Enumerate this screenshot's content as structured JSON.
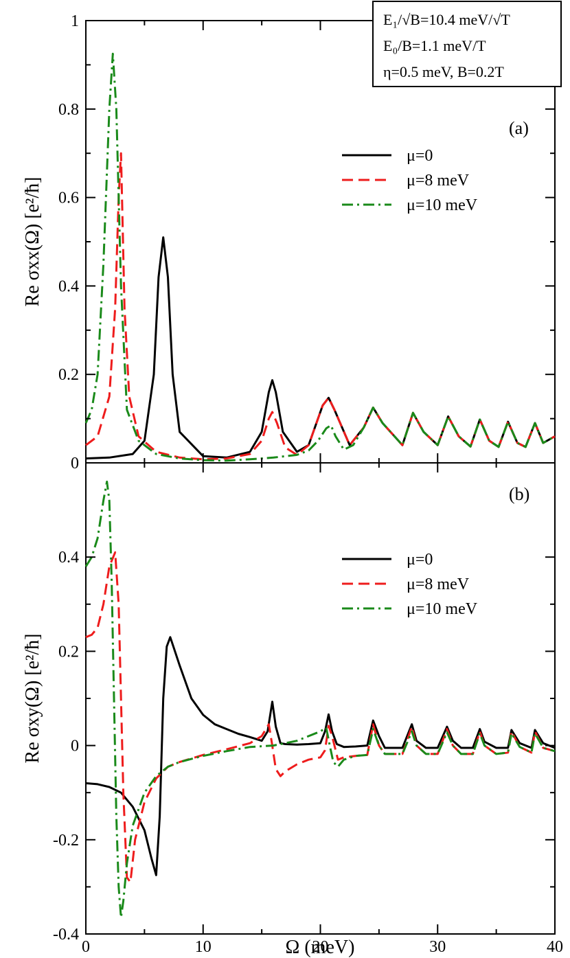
{
  "info_box": {
    "line1": "E₁/√B=10.4 meV/√T",
    "line2": "E₀/B=1.1 meV/T",
    "line3": "η=0.5 meV, B=0.2T"
  },
  "xlabel": "Ω (meV)",
  "colors": {
    "black": "#000000",
    "red": "#ee1c1c",
    "green": "#1a8a1a"
  },
  "chart_data": [
    {
      "type": "line",
      "panel": "(a)",
      "ylabel": "Re σxx(Ω) [e²/ħ]",
      "xlim": [
        0,
        40
      ],
      "ylim": [
        0,
        1.0
      ],
      "xticks": [
        0,
        10,
        20,
        30,
        40
      ],
      "xtick_labels": [
        "0",
        "10",
        "20",
        "30",
        "40"
      ],
      "yticks": [
        0,
        0.2,
        0.4,
        0.6,
        0.8,
        1.0
      ],
      "ytick_labels": [
        "0",
        "0.2",
        "0.4",
        "0.6",
        "0.8",
        "1"
      ],
      "legend": "upper-right",
      "series": [
        {
          "name": "μ=0",
          "style": "solid",
          "color": "#000000",
          "x": [
            0,
            2,
            4,
            5,
            5.8,
            6.2,
            6.6,
            7.0,
            7.4,
            8,
            10,
            12,
            14,
            15,
            15.6,
            15.9,
            16.2,
            16.8,
            18,
            19,
            20.2,
            20.7,
            21.2,
            22.5,
            23.7,
            24.5,
            25.3,
            27,
            27.9,
            28.8,
            30,
            30.9,
            31.8,
            32.8,
            33.6,
            34.4,
            35.2,
            36,
            36.8,
            37.5,
            38.3,
            39,
            40
          ],
          "y": [
            0.01,
            0.012,
            0.02,
            0.05,
            0.2,
            0.42,
            0.51,
            0.42,
            0.2,
            0.07,
            0.015,
            0.012,
            0.025,
            0.07,
            0.16,
            0.187,
            0.16,
            0.07,
            0.025,
            0.04,
            0.13,
            0.147,
            0.12,
            0.04,
            0.08,
            0.125,
            0.09,
            0.04,
            0.113,
            0.07,
            0.04,
            0.105,
            0.06,
            0.037,
            0.098,
            0.05,
            0.036,
            0.093,
            0.045,
            0.036,
            0.09,
            0.045,
            0.06
          ]
        },
        {
          "name": "μ=8 meV",
          "style": "dashed",
          "color": "#ee1c1c",
          "x": [
            0,
            1,
            2,
            2.5,
            2.8,
            3.0,
            3.3,
            3.7,
            4.5,
            6,
            8,
            10,
            12,
            14,
            15,
            15.6,
            15.9,
            16.3,
            17,
            18,
            19,
            20.2,
            20.7,
            21.2,
            22.5,
            23.7,
            24.5,
            25.3,
            27,
            27.9,
            28.8,
            30,
            30.9,
            31.8,
            32.8,
            33.6,
            34.4,
            35.2,
            36,
            36.8,
            37.5,
            38.3,
            39,
            40
          ],
          "y": [
            0.04,
            0.06,
            0.15,
            0.35,
            0.6,
            0.7,
            0.35,
            0.15,
            0.06,
            0.025,
            0.012,
            0.008,
            0.01,
            0.02,
            0.05,
            0.1,
            0.115,
            0.09,
            0.035,
            0.018,
            0.04,
            0.13,
            0.147,
            0.12,
            0.04,
            0.08,
            0.125,
            0.09,
            0.04,
            0.113,
            0.07,
            0.04,
            0.105,
            0.06,
            0.037,
            0.098,
            0.05,
            0.036,
            0.093,
            0.045,
            0.036,
            0.09,
            0.045,
            0.06
          ]
        },
        {
          "name": "μ=10 meV",
          "style": "dashdot",
          "color": "#1a8a1a",
          "x": [
            0,
            0.5,
            1,
            1.5,
            2,
            2.3,
            2.6,
            3,
            3.5,
            4.5,
            6,
            8,
            10,
            12,
            14,
            16,
            18,
            19,
            19.8,
            20.5,
            20.9,
            21.3,
            22,
            22.8,
            23.7,
            24.5,
            25.3,
            27,
            27.9,
            28.8,
            30,
            30.9,
            31.8,
            32.8,
            33.6,
            34.4,
            35.2,
            36,
            36.8,
            37.5,
            38.3,
            39,
            40
          ],
          "y": [
            0.09,
            0.12,
            0.2,
            0.45,
            0.8,
            0.925,
            0.8,
            0.4,
            0.12,
            0.05,
            0.02,
            0.01,
            0.006,
            0.005,
            0.008,
            0.012,
            0.018,
            0.028,
            0.05,
            0.078,
            0.085,
            0.06,
            0.03,
            0.04,
            0.08,
            0.125,
            0.09,
            0.04,
            0.113,
            0.07,
            0.04,
            0.105,
            0.06,
            0.037,
            0.098,
            0.05,
            0.036,
            0.093,
            0.045,
            0.036,
            0.09,
            0.045,
            0.06
          ]
        }
      ]
    },
    {
      "type": "line",
      "panel": "(b)",
      "ylabel": "Re σxy(Ω) [e²/ħ]",
      "xlim": [
        0,
        40
      ],
      "ylim": [
        -0.4,
        0.6
      ],
      "xticks": [
        0,
        10,
        20,
        30,
        40
      ],
      "xtick_labels": [
        "0",
        "10",
        "20",
        "30",
        "40"
      ],
      "yticks": [
        -0.4,
        -0.2,
        0,
        0.2,
        0.4
      ],
      "ytick_labels": [
        "-0.4",
        "-0.2",
        "0",
        "0.2",
        "0.4"
      ],
      "legend": "upper-right",
      "series": [
        {
          "name": "μ=0",
          "style": "solid",
          "color": "#000000",
          "x": [
            0,
            1,
            2,
            3,
            4,
            5,
            5.6,
            6.0,
            6.3,
            6.6,
            6.9,
            7.2,
            8,
            9,
            10,
            11,
            12,
            13,
            14,
            15,
            15.5,
            15.9,
            16.2,
            16.6,
            17,
            18,
            19,
            20,
            20.4,
            20.7,
            21,
            21.4,
            22,
            23,
            24,
            24.5,
            25,
            25.5,
            27,
            27.8,
            28.2,
            29,
            30,
            30.8,
            31.3,
            32,
            33,
            33.6,
            34,
            35,
            36,
            36.3,
            37,
            38,
            38.3,
            39,
            40
          ],
          "y": [
            -0.08,
            -0.082,
            -0.088,
            -0.1,
            -0.13,
            -0.18,
            -0.24,
            -0.275,
            -0.15,
            0.1,
            0.21,
            0.23,
            0.17,
            0.1,
            0.065,
            0.045,
            0.035,
            0.025,
            0.018,
            0.01,
            0.03,
            0.093,
            0.04,
            0.005,
            0.003,
            0.002,
            0.003,
            0.005,
            0.03,
            0.066,
            0.03,
            0.003,
            -0.003,
            -0.002,
            0.0,
            0.053,
            0.02,
            -0.005,
            -0.005,
            0.045,
            0.01,
            -0.005,
            -0.005,
            0.04,
            0.01,
            -0.005,
            -0.005,
            0.035,
            0.008,
            -0.005,
            -0.005,
            0.033,
            0.005,
            -0.005,
            0.033,
            0.005,
            -0.005
          ]
        },
        {
          "name": "μ=8 meV",
          "style": "dashed",
          "color": "#ee1c1c",
          "x": [
            0,
            0.5,
            1,
            1.5,
            2,
            2.5,
            2.8,
            3.2,
            3.5,
            3.8,
            4.2,
            5,
            6,
            7,
            8,
            10,
            12,
            14,
            15,
            15.6,
            15.9,
            16.2,
            16.6,
            17,
            18,
            19,
            20,
            20.4,
            20.7,
            21,
            21.5,
            22,
            23,
            24,
            24.5,
            25,
            25.5,
            27,
            27.8,
            28.2,
            29,
            30,
            30.8,
            31.3,
            32,
            33,
            33.6,
            34,
            35,
            36,
            36.3,
            37,
            38,
            38.3,
            39,
            40
          ],
          "y": [
            0.23,
            0.235,
            0.25,
            0.3,
            0.38,
            0.41,
            0.3,
            -0.1,
            -0.28,
            -0.29,
            -0.2,
            -0.12,
            -0.07,
            -0.045,
            -0.035,
            -0.02,
            -0.008,
            0.005,
            0.02,
            0.045,
            0.0,
            -0.05,
            -0.065,
            -0.055,
            -0.04,
            -0.03,
            -0.025,
            -0.01,
            0.042,
            0.02,
            -0.03,
            -0.025,
            -0.022,
            -0.02,
            0.045,
            0.0,
            -0.018,
            -0.018,
            0.04,
            0.0,
            -0.018,
            -0.018,
            0.035,
            0.0,
            -0.018,
            -0.018,
            0.03,
            0.0,
            -0.018,
            -0.015,
            0.03,
            -0.003,
            -0.015,
            0.03,
            -0.005,
            -0.012
          ]
        },
        {
          "name": "μ=10 meV",
          "style": "dashdot",
          "color": "#1a8a1a",
          "x": [
            0,
            0.5,
            1,
            1.5,
            1.8,
            2.0,
            2.2,
            2.4,
            2.6,
            2.8,
            3.0,
            3.2,
            3.5,
            4,
            5,
            6,
            7,
            8,
            10,
            12,
            14,
            16,
            18,
            19,
            20,
            20.5,
            20.8,
            21.1,
            21.5,
            22,
            23,
            24,
            24.5,
            25,
            25.5,
            27,
            27.8,
            28.2,
            29,
            30,
            30.8,
            31.3,
            32,
            33,
            33.6,
            34,
            35,
            36,
            36.3,
            37,
            38,
            38.3,
            39,
            40
          ],
          "y": [
            0.38,
            0.4,
            0.44,
            0.52,
            0.56,
            0.52,
            0.35,
            0.1,
            -0.15,
            -0.3,
            -0.365,
            -0.33,
            -0.25,
            -0.17,
            -0.1,
            -0.065,
            -0.045,
            -0.035,
            -0.022,
            -0.012,
            -0.003,
            0.0,
            0.01,
            0.02,
            0.03,
            0.038,
            0.0,
            -0.035,
            -0.045,
            -0.03,
            -0.022,
            -0.02,
            0.035,
            0.0,
            -0.018,
            -0.018,
            0.03,
            0.0,
            -0.018,
            -0.018,
            0.028,
            0.0,
            -0.018,
            -0.018,
            0.026,
            0.0,
            -0.018,
            -0.015,
            0.026,
            -0.003,
            -0.015,
            0.026,
            -0.005,
            -0.012
          ]
        }
      ]
    }
  ]
}
